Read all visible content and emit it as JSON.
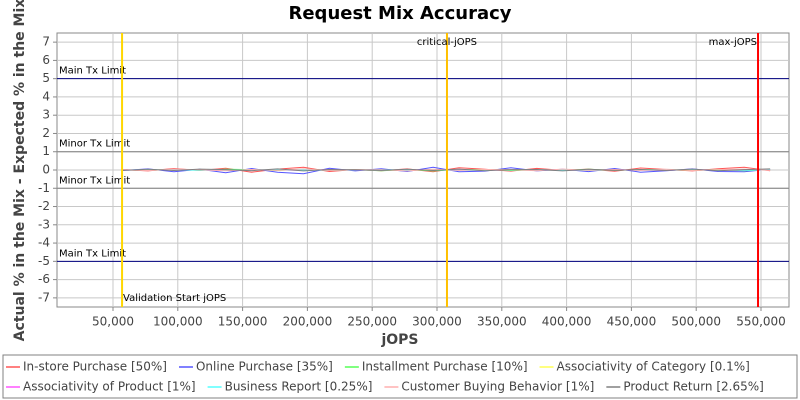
{
  "chart_data": {
    "type": "line",
    "title": "Request Mix Accuracy",
    "x_label": "jOPS",
    "y_label": "Actual % in the Mix - Expected % in the Mix",
    "x": [
      57000,
      77000,
      97000,
      117000,
      137000,
      157000,
      177000,
      197000,
      217000,
      237000,
      257000,
      277000,
      297000,
      317000,
      337000,
      357000,
      377000,
      397000,
      417000,
      437000,
      457000,
      477000,
      497000,
      517000,
      537000,
      557000
    ],
    "series": [
      {
        "name": "In-store Purchase [50%]",
        "color": "#ff5555",
        "values": [
          0.02,
          -0.05,
          0.08,
          -0.03,
          0.1,
          -0.12,
          0.05,
          0.15,
          -0.08,
          0.03,
          -0.04,
          0.06,
          -0.1,
          0.12,
          0.04,
          -0.06,
          0.09,
          -0.02,
          0.05,
          -0.07,
          0.11,
          0.03,
          -0.05,
          0.07,
          0.15,
          -0.04
        ]
      },
      {
        "name": "Online Purchase [35%]",
        "color": "#5555ff",
        "values": [
          -0.03,
          0.06,
          -0.1,
          0.04,
          -0.15,
          0.08,
          -0.12,
          -0.2,
          0.1,
          -0.05,
          0.07,
          -0.08,
          0.15,
          -0.1,
          -0.06,
          0.12,
          -0.05,
          0.04,
          -0.09,
          0.08,
          -0.12,
          -0.04,
          0.06,
          -0.08,
          -0.1,
          0.05
        ]
      },
      {
        "name": "Installment Purchase [10%]",
        "color": "#55ff55",
        "values": [
          0.01,
          -0.02,
          0.03,
          -0.01,
          0.04,
          0.02,
          -0.03,
          0.05,
          -0.02,
          0.01,
          -0.04,
          0.02,
          -0.05,
          0.03,
          0.02,
          -0.03,
          0.01,
          -0.02,
          0.04,
          -0.01,
          0.02,
          0.01,
          -0.02,
          0.03,
          -0.04,
          0.02
        ]
      },
      {
        "name": "Associativity of Category [0.1%]",
        "color": "#ffff55",
        "values": [
          0,
          0,
          0.01,
          0,
          -0.01,
          0,
          0,
          0.01,
          0,
          0,
          0,
          -0.01,
          0,
          0,
          0.01,
          0,
          0,
          0,
          -0.01,
          0,
          0,
          0,
          0.01,
          0,
          0,
          0
        ]
      },
      {
        "name": "Associativity of Product [1%]",
        "color": "#ff55ff",
        "values": [
          0.01,
          -0.01,
          0.02,
          0,
          -0.02,
          0.01,
          0,
          -0.01,
          0.02,
          0,
          -0.01,
          0.01,
          0,
          0.02,
          -0.01,
          0,
          0.01,
          -0.02,
          0,
          0.01,
          0,
          -0.01,
          0.02,
          0,
          -0.01,
          0.01
        ]
      },
      {
        "name": "Business Report [0.25%]",
        "color": "#55ffff",
        "values": [
          0,
          0.01,
          0,
          -0.01,
          0,
          0.01,
          0,
          0,
          -0.01,
          0,
          0.01,
          0,
          0,
          -0.01,
          0,
          0,
          0.01,
          0,
          -0.01,
          0,
          0,
          0.01,
          0,
          0,
          -0.01,
          0
        ]
      },
      {
        "name": "Customer Buying Behavior [1%]",
        "color": "#ffafaf",
        "values": [
          0.02,
          -0.03,
          0.05,
          0.01,
          -0.04,
          0.03,
          -0.02,
          0.06,
          -0.03,
          0.02,
          0.01,
          -0.05,
          0.04,
          -0.02,
          0.03,
          0.02,
          -0.04,
          0.05,
          -0.01,
          0.03,
          -0.02,
          0.04,
          -0.03,
          0.02,
          0.05,
          -0.02
        ]
      },
      {
        "name": "Product Return [2.65%]",
        "color": "#808080",
        "values": [
          -0.02,
          0.04,
          -0.03,
          0.05,
          0.02,
          -0.04,
          0.06,
          -0.05,
          0.03,
          0.01,
          -0.02,
          0.04,
          -0.03,
          0.05,
          -0.04,
          0.02,
          0.03,
          -0.05,
          0.04,
          -0.02,
          0.03,
          -0.03,
          0.05,
          -0.04,
          0.02,
          0.06
        ]
      }
    ],
    "xlim": [
      6800,
      571600
    ],
    "ylim": [
      -7.5,
      7.5
    ],
    "xticks": [
      {
        "value": 50000,
        "label": "50,000"
      },
      {
        "value": 100000,
        "label": "100,000"
      },
      {
        "value": 150000,
        "label": "150,000"
      },
      {
        "value": 200000,
        "label": "200,000"
      },
      {
        "value": 250000,
        "label": "250,000"
      },
      {
        "value": 300000,
        "label": "300,000"
      },
      {
        "value": 350000,
        "label": "350,000"
      },
      {
        "value": 400000,
        "label": "400,000"
      },
      {
        "value": 450000,
        "label": "450,000"
      },
      {
        "value": 500000,
        "label": "500,000"
      },
      {
        "value": 550000,
        "label": "550,000"
      }
    ],
    "yticks": [
      -7,
      -6,
      -5,
      -4,
      -3,
      -2,
      -1,
      0,
      1,
      2,
      3,
      4,
      5,
      6,
      7
    ],
    "grid": true,
    "vertical_markers": [
      {
        "x": 57000,
        "label": "Validation Start jOPS",
        "color": "#ffd700"
      },
      {
        "x": 307700,
        "label": "critical-jOPS",
        "color": "#ffc000"
      },
      {
        "x": 547700,
        "label": "max-jOPS",
        "color": "#ff0000"
      }
    ],
    "horizontal_markers": [
      {
        "y": 5,
        "label": "Main Tx Limit",
        "color": "#000080"
      },
      {
        "y": 1,
        "label": "Minor Tx Limit",
        "color": "#808080"
      },
      {
        "y": -1,
        "label": "Minor Tx Limit",
        "color": "#808080"
      },
      {
        "y": -5,
        "label": "Main Tx Limit",
        "color": "#000080"
      }
    ]
  }
}
